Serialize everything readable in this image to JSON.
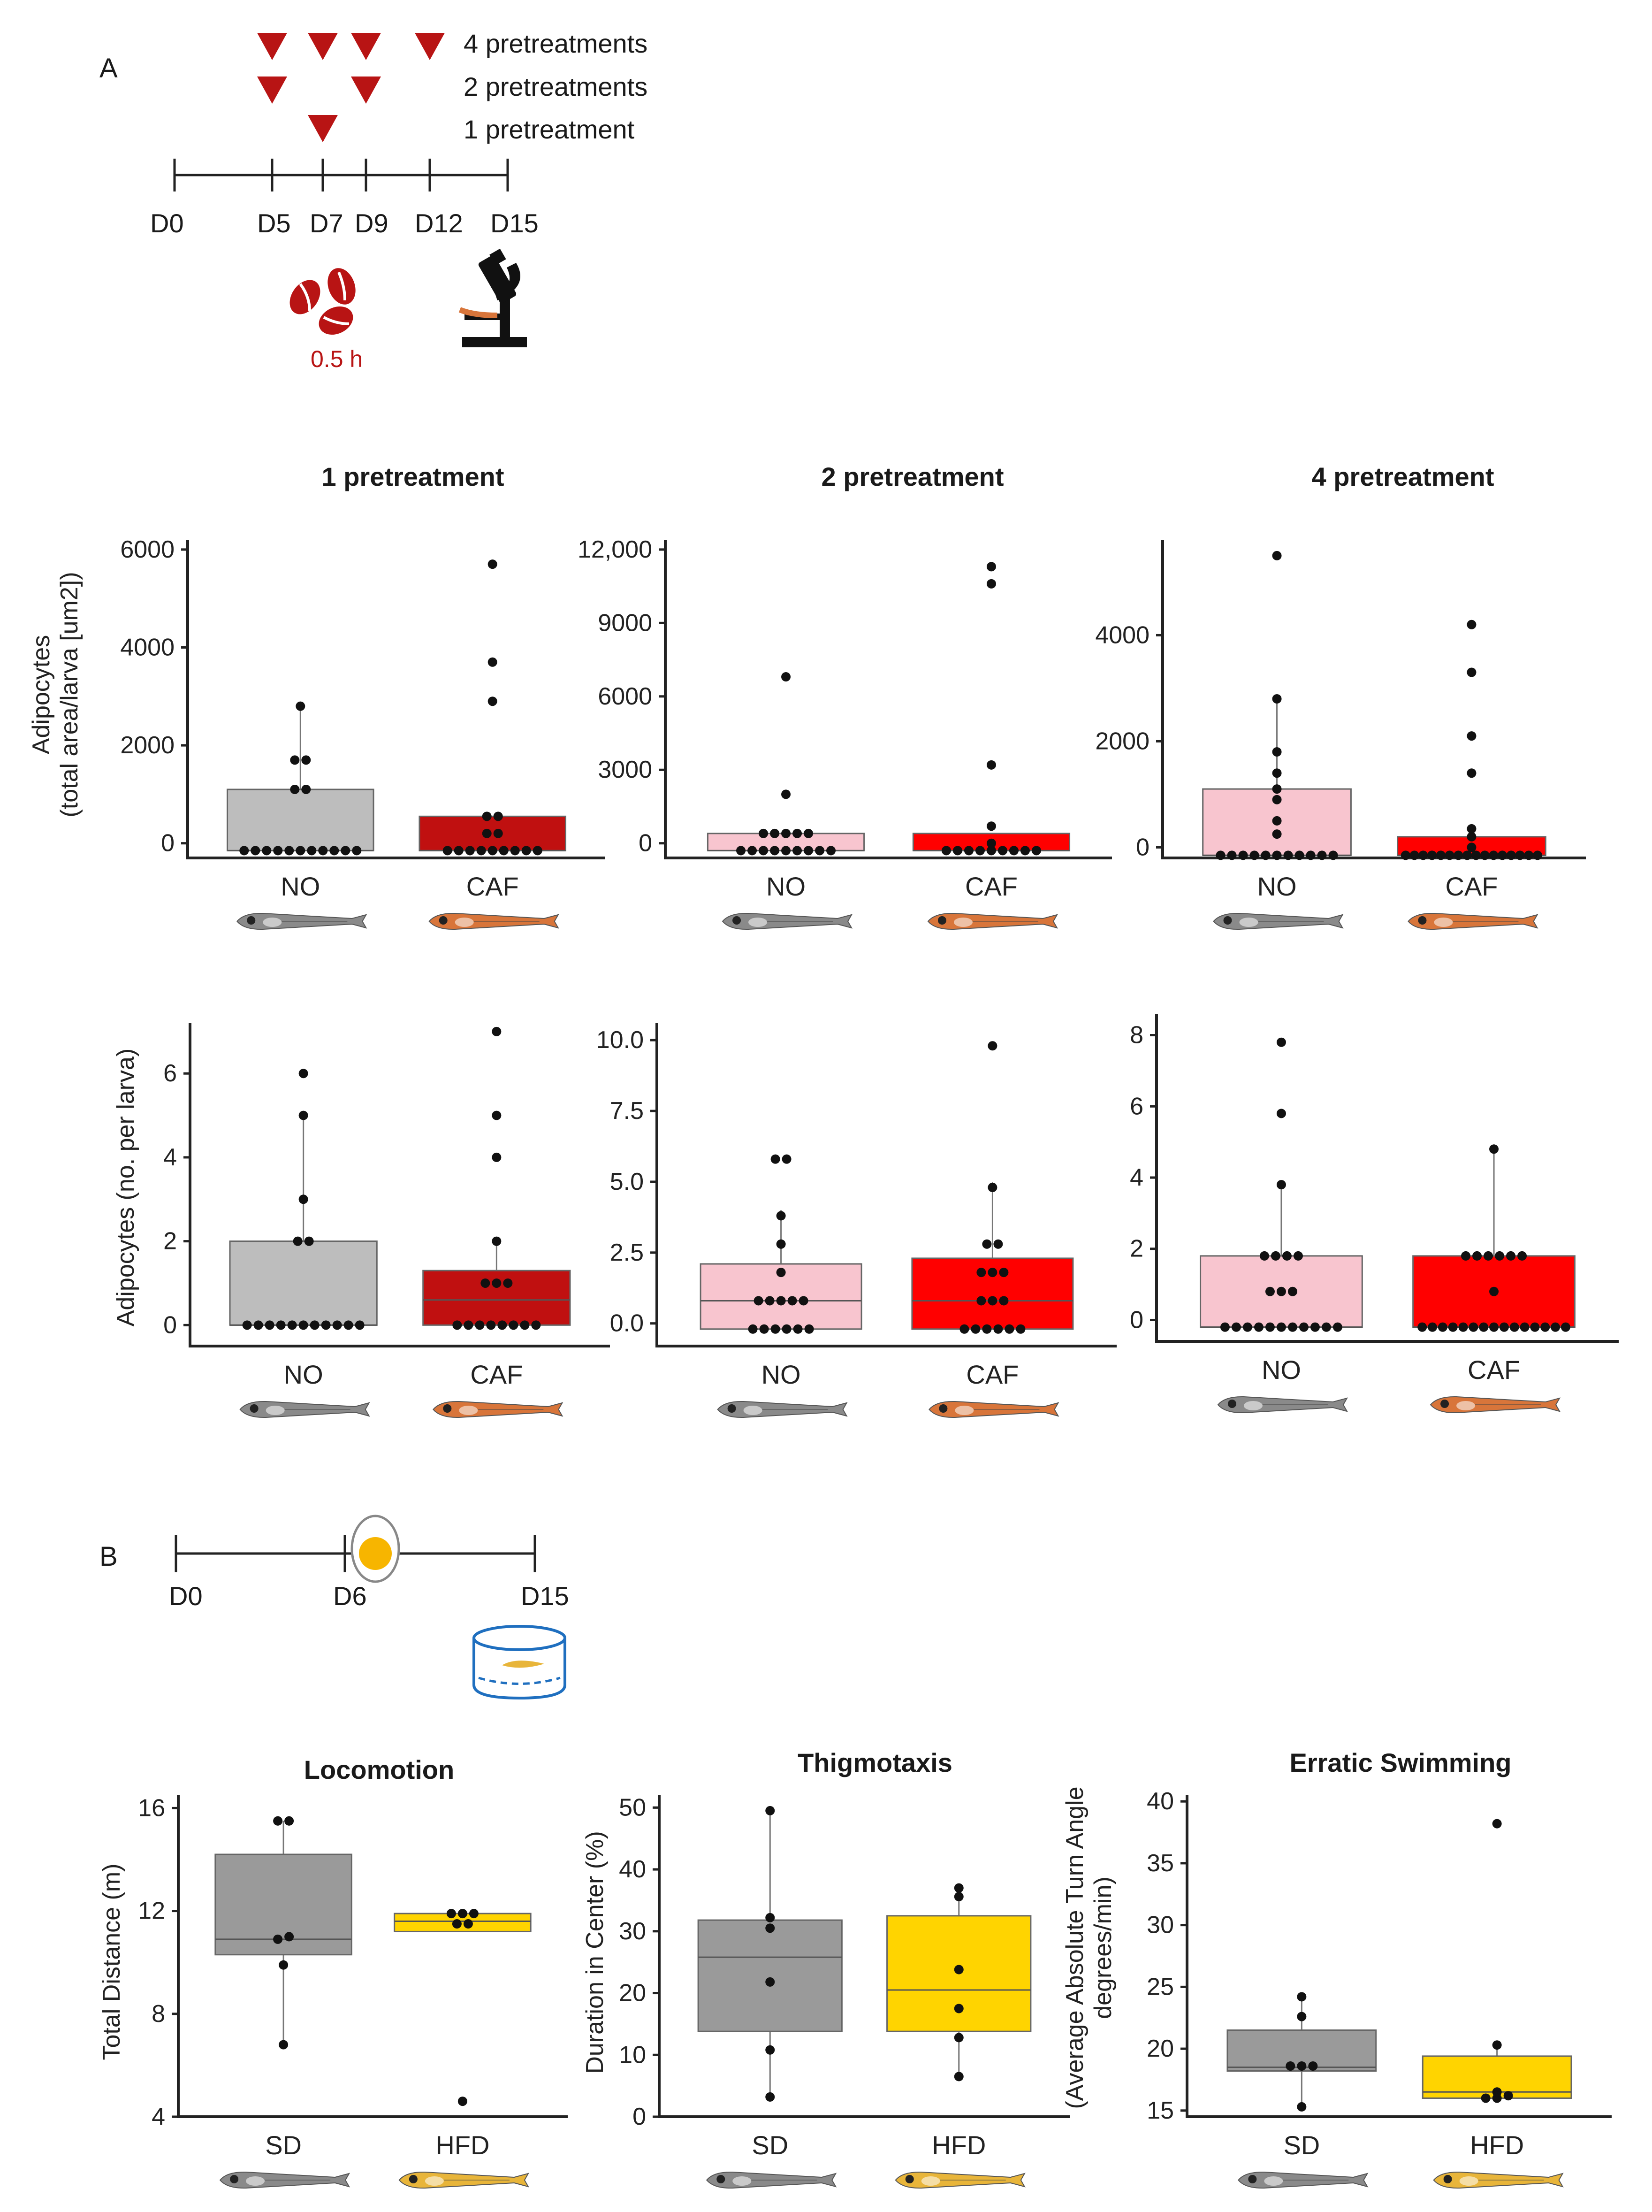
{
  "panel_a": {
    "letter": "A",
    "legend": [
      "4 pretreatments",
      "2 pretreatments",
      "1 pretreatment"
    ],
    "timeline": [
      "D0",
      "D5",
      "D7",
      "D9",
      "D12",
      "D15"
    ],
    "duration": "0.5 h",
    "triangle_color": "#b81414"
  },
  "panel_b": {
    "letter": "B",
    "timeline": [
      "D0",
      "D6",
      "D15"
    ],
    "egg_color": "#f7b500"
  },
  "colors": {
    "no_grey": "#bdbdbd",
    "caf_darkred": "#c01010",
    "no_pink": "#f8c5cf",
    "caf_red": "#ff0000",
    "sd_grey": "#9a9a9a",
    "hfd_yellow": "#ffd400",
    "fish_grey": "#8a8a8a",
    "fish_orange": "#d8753a",
    "fish_yellow": "#e8b53a"
  },
  "chart_data": [
    {
      "id": "a1",
      "type": "box",
      "title": "1 pretreatment",
      "ylabel": [
        "Adipocytes",
        "(total area/larva [um2])"
      ],
      "ylim": [
        -300,
        6200
      ],
      "yticks": [
        0,
        2000,
        4000,
        6000
      ],
      "yticklabels": [
        "0",
        "2000",
        "4000",
        "6000"
      ],
      "categories": [
        "NO",
        "CAF"
      ],
      "fish": [
        "grey",
        "orange"
      ],
      "colors": [
        "#bdbdbd",
        "#c01010"
      ],
      "boxes": [
        {
          "q1": -150,
          "median": -150,
          "q3": 1100,
          "whisker_low": -150,
          "whisker_high": 2800
        },
        {
          "q1": -150,
          "median": -150,
          "q3": 550,
          "whisker_low": -150,
          "whisker_high": 550
        }
      ],
      "points": [
        [
          -150,
          -150,
          -150,
          -150,
          -150,
          -150,
          -150,
          -150,
          -150,
          -150,
          -150,
          1100,
          1100,
          1700,
          1700,
          2800
        ],
        [
          -150,
          -150,
          -150,
          -150,
          -150,
          -150,
          -150,
          -150,
          -150,
          200,
          200,
          550,
          550,
          2900,
          3700,
          5700
        ]
      ]
    },
    {
      "id": "a2",
      "type": "box",
      "title": "2 pretreatment",
      "ylabel": [],
      "ylim": [
        -600,
        12400
      ],
      "yticks": [
        0,
        3000,
        6000,
        9000,
        12000
      ],
      "yticklabels": [
        "0",
        "3000",
        "6000",
        "9000",
        "12,000"
      ],
      "categories": [
        "NO",
        "CAF"
      ],
      "fish": [
        "grey",
        "orange"
      ],
      "colors": [
        "#f8c5cf",
        "#ff0000"
      ],
      "boxes": [
        {
          "q1": -300,
          "median": -300,
          "q3": 400,
          "whisker_low": -300,
          "whisker_high": 400
        },
        {
          "q1": -300,
          "median": -300,
          "q3": 400,
          "whisker_low": -300,
          "whisker_high": 400
        }
      ],
      "points": [
        [
          -300,
          -300,
          -300,
          -300,
          -300,
          -300,
          -300,
          -300,
          -300,
          400,
          400,
          400,
          400,
          400,
          2000,
          6800
        ],
        [
          -300,
          -300,
          -300,
          -300,
          -300,
          -300,
          -300,
          -300,
          -300,
          0,
          700,
          3200,
          10600,
          11300
        ]
      ]
    },
    {
      "id": "a3",
      "type": "box",
      "title": "4 pretreatment",
      "ylabel": [],
      "ylim": [
        -200,
        5800
      ],
      "yticks": [
        0,
        2000,
        4000
      ],
      "yticklabels": [
        "0",
        "2000",
        "4000"
      ],
      "categories": [
        "NO",
        "CAF"
      ],
      "fish": [
        "grey",
        "orange"
      ],
      "colors": [
        "#f8c5cf",
        "#ff0000"
      ],
      "boxes": [
        {
          "q1": -150,
          "median": -150,
          "q3": 1100,
          "whisker_low": -150,
          "whisker_high": 2800
        },
        {
          "q1": -150,
          "median": -150,
          "q3": 200,
          "whisker_low": -150,
          "whisker_high": 200
        }
      ],
      "points": [
        [
          -150,
          -150,
          -150,
          -150,
          -150,
          -150,
          -150,
          -150,
          -150,
          -150,
          -150,
          250,
          500,
          900,
          1100,
          1400,
          1800,
          2800,
          5500
        ],
        [
          -150,
          -150,
          -150,
          -150,
          -150,
          -150,
          -150,
          -150,
          -150,
          -150,
          -150,
          -150,
          -150,
          -150,
          -150,
          -150,
          0,
          200,
          350,
          1400,
          2100,
          3300,
          4200
        ]
      ]
    },
    {
      "id": "a4",
      "type": "box",
      "title": "",
      "ylabel": [
        "Adipocytes (no. per larva)"
      ],
      "ylim": [
        -0.5,
        7.2
      ],
      "yticks": [
        0,
        2,
        4,
        6
      ],
      "yticklabels": [
        "0",
        "2",
        "4",
        "6"
      ],
      "categories": [
        "NO",
        "CAF"
      ],
      "fish": [
        "grey",
        "orange"
      ],
      "colors": [
        "#bdbdbd",
        "#c01010"
      ],
      "boxes": [
        {
          "q1": 0,
          "median": 0,
          "q3": 2,
          "whisker_low": 0,
          "whisker_high": 5
        },
        {
          "q1": 0,
          "median": 0.6,
          "q3": 1.3,
          "whisker_low": 0,
          "whisker_high": 2
        }
      ],
      "points": [
        [
          0,
          0,
          0,
          0,
          0,
          0,
          0,
          0,
          0,
          0,
          0,
          2,
          2,
          3,
          5,
          6
        ],
        [
          0,
          0,
          0,
          0,
          0,
          0,
          0,
          0,
          1,
          1,
          1,
          2,
          4,
          5,
          7
        ]
      ]
    },
    {
      "id": "a5",
      "type": "box",
      "title": "",
      "ylabel": [],
      "ylim": [
        -0.8,
        10.6
      ],
      "yticks": [
        0,
        2.5,
        5,
        7.5,
        10
      ],
      "yticklabels": [
        "0.0",
        "2.5",
        "5.0",
        "7.5",
        "10.0"
      ],
      "categories": [
        "NO",
        "CAF"
      ],
      "fish": [
        "grey",
        "orange"
      ],
      "colors": [
        "#f8c5cf",
        "#ff0000"
      ],
      "boxes": [
        {
          "q1": -0.2,
          "median": 0.8,
          "q3": 2.1,
          "whisker_low": -0.2,
          "whisker_high": 4
        },
        {
          "q1": -0.2,
          "median": 0.8,
          "q3": 2.3,
          "whisker_low": -0.2,
          "whisker_high": 5
        }
      ],
      "points": [
        [
          -0.2,
          -0.2,
          -0.2,
          -0.2,
          -0.2,
          -0.2,
          0.8,
          0.8,
          0.8,
          0.8,
          0.8,
          1.8,
          2.8,
          3.8,
          5.8,
          5.8
        ],
        [
          -0.2,
          -0.2,
          -0.2,
          -0.2,
          -0.2,
          -0.2,
          0.8,
          0.8,
          0.8,
          1.8,
          1.8,
          1.8,
          2.8,
          2.8,
          4.8,
          9.8
        ]
      ]
    },
    {
      "id": "a6",
      "type": "box",
      "title": "",
      "ylabel": [],
      "ylim": [
        -0.6,
        8.6
      ],
      "yticks": [
        0,
        2,
        4,
        6,
        8
      ],
      "yticklabels": [
        "0",
        "2",
        "4",
        "6",
        "8"
      ],
      "categories": [
        "NO",
        "CAF"
      ],
      "fish": [
        "grey",
        "orange"
      ],
      "colors": [
        "#f8c5cf",
        "#ff0000"
      ],
      "boxes": [
        {
          "q1": -0.2,
          "median": -0.2,
          "q3": 1.8,
          "whisker_low": -0.2,
          "whisker_high": 3.8
        },
        {
          "q1": -0.2,
          "median": -0.2,
          "q3": 1.8,
          "whisker_low": -0.2,
          "whisker_high": 4.8
        }
      ],
      "points": [
        [
          -0.2,
          -0.2,
          -0.2,
          -0.2,
          -0.2,
          -0.2,
          -0.2,
          -0.2,
          -0.2,
          -0.2,
          -0.2,
          0.8,
          0.8,
          0.8,
          1.8,
          1.8,
          1.8,
          1.8,
          3.8,
          5.8,
          7.8
        ],
        [
          -0.2,
          -0.2,
          -0.2,
          -0.2,
          -0.2,
          -0.2,
          -0.2,
          -0.2,
          -0.2,
          -0.2,
          -0.2,
          -0.2,
          -0.2,
          -0.2,
          -0.2,
          0.8,
          1.8,
          1.8,
          1.8,
          1.8,
          1.8,
          1.8,
          4.8
        ]
      ]
    },
    {
      "id": "b1",
      "type": "box",
      "title": "Locomotion",
      "ylabel": [
        "Total Distance (m)"
      ],
      "ylim": [
        4,
        16.5
      ],
      "yticks": [
        4,
        8,
        12,
        16
      ],
      "yticklabels": [
        "4",
        "8",
        "12",
        "16"
      ],
      "categories": [
        "SD",
        "HFD"
      ],
      "fish": [
        "grey",
        "yellow"
      ],
      "colors": [
        "#9a9a9a",
        "#ffd400"
      ],
      "boxes": [
        {
          "q1": 10.3,
          "median": 10.9,
          "q3": 14.2,
          "whisker_low": 6.8,
          "whisker_high": 15.5
        },
        {
          "q1": 11.2,
          "median": 11.6,
          "q3": 11.9,
          "whisker_low": 11.2,
          "whisker_high": 11.9
        }
      ],
      "points": [
        [
          6.8,
          9.9,
          10.9,
          11.0,
          15.5,
          15.5
        ],
        [
          4.6,
          11.5,
          11.5,
          11.9,
          11.9,
          11.9
        ]
      ]
    },
    {
      "id": "b2",
      "type": "box",
      "title": "Thigmotaxis",
      "ylabel": [
        "Duration in Center (%)"
      ],
      "ylim": [
        0,
        52
      ],
      "yticks": [
        0,
        10,
        20,
        30,
        40,
        50
      ],
      "yticklabels": [
        "0",
        "10",
        "20",
        "30",
        "40",
        "50"
      ],
      "categories": [
        "SD",
        "HFD"
      ],
      "fish": [
        "grey",
        "yellow"
      ],
      "colors": [
        "#9a9a9a",
        "#ffd400"
      ],
      "boxes": [
        {
          "q1": 13.8,
          "median": 25.8,
          "q3": 31.8,
          "whisker_low": 3.2,
          "whisker_high": 49.5
        },
        {
          "q1": 13.8,
          "median": 20.5,
          "q3": 32.5,
          "whisker_low": 6.5,
          "whisker_high": 37
        }
      ],
      "points": [
        [
          3.2,
          10.8,
          21.8,
          30.5,
          32.2,
          49.5
        ],
        [
          6.5,
          12.8,
          17.5,
          23.8,
          35.6,
          37
        ]
      ]
    },
    {
      "id": "b3",
      "type": "box",
      "title": "Erratic Swimming",
      "ylabel": [
        "(Average Absolute Turn Angle",
        "degrees/min)"
      ],
      "ylim": [
        14.5,
        40.5
      ],
      "yticks": [
        15,
        20,
        25,
        30,
        35,
        40
      ],
      "yticklabels": [
        "15",
        "20",
        "25",
        "30",
        "35",
        "40"
      ],
      "categories": [
        "SD",
        "HFD"
      ],
      "fish": [
        "grey",
        "yellow"
      ],
      "colors": [
        "#9a9a9a",
        "#ffd400"
      ],
      "boxes": [
        {
          "q1": 18.2,
          "median": 18.5,
          "q3": 21.5,
          "whisker_low": 15.3,
          "whisker_high": 24.2
        },
        {
          "q1": 16,
          "median": 16.5,
          "q3": 19.4,
          "whisker_low": 16,
          "whisker_high": 20.3
        }
      ],
      "points": [
        [
          15.3,
          18.6,
          18.6,
          18.6,
          22.6,
          24.2
        ],
        [
          16,
          16,
          16.2,
          16.5,
          20.3,
          38.2
        ]
      ]
    }
  ]
}
